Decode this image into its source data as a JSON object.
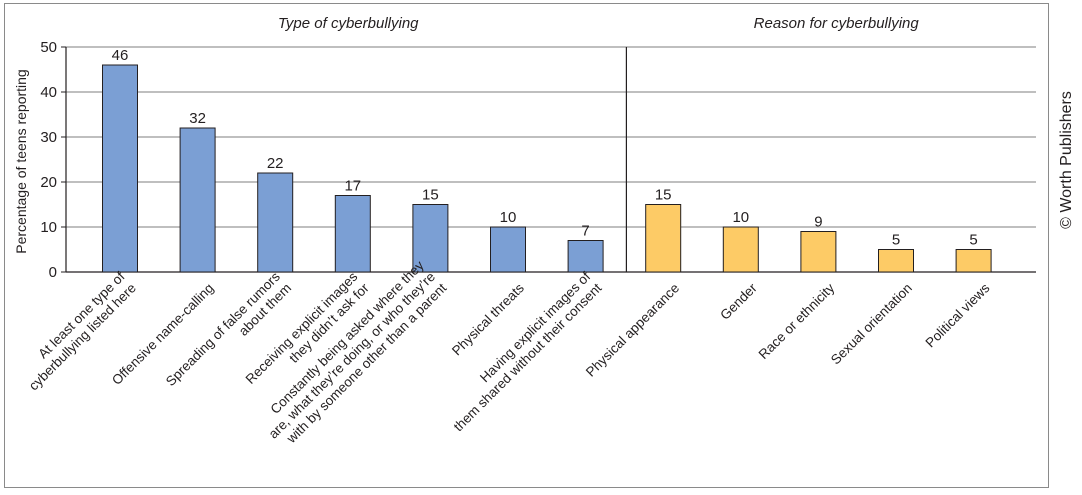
{
  "credit": "© Worth Publishers",
  "chart_data": {
    "type": "bar",
    "ylabel": "Percentage of teens reporting",
    "ylim": [
      0,
      50
    ],
    "yticks": [
      0,
      10,
      20,
      30,
      40,
      50
    ],
    "grid": true,
    "groups": [
      {
        "title": "Type of cyberbullying",
        "color": "#7b9fd4",
        "categories": [
          [
            "At least one type of",
            "cyberbullying listed here"
          ],
          [
            "Offensive name-calling"
          ],
          [
            "Spreading of false rumors",
            "about them"
          ],
          [
            "Receiving explicit images",
            "they didn’t ask for"
          ],
          [
            "Constantly being asked where they",
            "are, what they’re doing, or who they’re",
            "with by someone other than a parent"
          ],
          [
            "Physical threats"
          ],
          [
            "Having explicit images of",
            "them shared without their consent"
          ]
        ],
        "values": [
          46,
          32,
          22,
          17,
          15,
          10,
          7
        ]
      },
      {
        "title": "Reason for cyberbullying",
        "color": "#fdcb66",
        "categories": [
          [
            "Physical appearance"
          ],
          [
            "Gender"
          ],
          [
            "Race or ethnicity"
          ],
          [
            "Sexual orientation"
          ],
          [
            "Political views"
          ]
        ],
        "values": [
          15,
          10,
          9,
          5,
          5
        ]
      }
    ]
  }
}
